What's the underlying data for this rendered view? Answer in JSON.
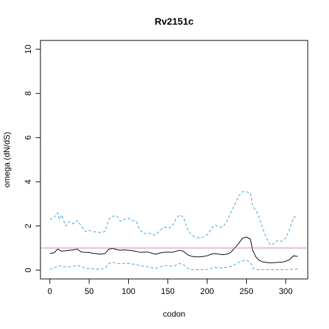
{
  "chart_data": {
    "type": "line",
    "title": "Rv2151c",
    "xlabel": "codon",
    "ylabel": "omega (dN/dS)",
    "xlim": [
      -12,
      328
    ],
    "ylim": [
      -0.4,
      10.4
    ],
    "x_ticks": [
      0,
      50,
      100,
      150,
      200,
      250,
      300
    ],
    "y_ticks": [
      0,
      2,
      4,
      6,
      8,
      10
    ],
    "grid": false,
    "reference_line": {
      "y": 1,
      "color": "#c080c0"
    },
    "series": [
      {
        "style": "solid",
        "color": "#000000",
        "points": [
          [
            0,
            0.75
          ],
          [
            5,
            0.78
          ],
          [
            10,
            0.95
          ],
          [
            15,
            0.86
          ],
          [
            20,
            0.88
          ],
          [
            25,
            0.9
          ],
          [
            30,
            0.92
          ],
          [
            35,
            0.95
          ],
          [
            40,
            0.82
          ],
          [
            45,
            0.8
          ],
          [
            50,
            0.8
          ],
          [
            55,
            0.76
          ],
          [
            60,
            0.74
          ],
          [
            65,
            0.72
          ],
          [
            70,
            0.75
          ],
          [
            75,
            0.95
          ],
          [
            80,
            0.98
          ],
          [
            85,
            0.93
          ],
          [
            90,
            0.9
          ],
          [
            95,
            0.92
          ],
          [
            100,
            0.9
          ],
          [
            105,
            0.88
          ],
          [
            110,
            0.85
          ],
          [
            115,
            0.8
          ],
          [
            120,
            0.82
          ],
          [
            125,
            0.82
          ],
          [
            130,
            0.76
          ],
          [
            135,
            0.72
          ],
          [
            140,
            0.78
          ],
          [
            145,
            0.8
          ],
          [
            150,
            0.82
          ],
          [
            155,
            0.8
          ],
          [
            160,
            0.85
          ],
          [
            165,
            0.9
          ],
          [
            170,
            0.85
          ],
          [
            175,
            0.7
          ],
          [
            180,
            0.63
          ],
          [
            185,
            0.6
          ],
          [
            190,
            0.6
          ],
          [
            195,
            0.62
          ],
          [
            200,
            0.65
          ],
          [
            205,
            0.72
          ],
          [
            210,
            0.75
          ],
          [
            215,
            0.72
          ],
          [
            220,
            0.7
          ],
          [
            225,
            0.72
          ],
          [
            230,
            0.8
          ],
          [
            235,
            1.0
          ],
          [
            240,
            1.2
          ],
          [
            245,
            1.45
          ],
          [
            250,
            1.5
          ],
          [
            255,
            1.4
          ],
          [
            258,
            0.9
          ],
          [
            262,
            0.6
          ],
          [
            266,
            0.45
          ],
          [
            270,
            0.38
          ],
          [
            275,
            0.35
          ],
          [
            280,
            0.33
          ],
          [
            285,
            0.34
          ],
          [
            290,
            0.35
          ],
          [
            295,
            0.36
          ],
          [
            300,
            0.4
          ],
          [
            305,
            0.48
          ],
          [
            310,
            0.65
          ],
          [
            315,
            0.62
          ]
        ]
      },
      {
        "style": "dashed",
        "color": "#3aa0e0",
        "points": [
          [
            0,
            2.3
          ],
          [
            5,
            2.35
          ],
          [
            10,
            2.6
          ],
          [
            12,
            2.3
          ],
          [
            15,
            2.5
          ],
          [
            20,
            2.0
          ],
          [
            25,
            2.2
          ],
          [
            30,
            2.1
          ],
          [
            35,
            2.25
          ],
          [
            40,
            2.0
          ],
          [
            45,
            1.75
          ],
          [
            50,
            1.8
          ],
          [
            55,
            1.75
          ],
          [
            60,
            1.72
          ],
          [
            65,
            1.7
          ],
          [
            70,
            1.75
          ],
          [
            75,
            2.3
          ],
          [
            80,
            2.45
          ],
          [
            85,
            2.45
          ],
          [
            90,
            2.2
          ],
          [
            95,
            2.3
          ],
          [
            100,
            2.35
          ],
          [
            105,
            2.25
          ],
          [
            110,
            2.2
          ],
          [
            115,
            1.8
          ],
          [
            120,
            1.65
          ],
          [
            125,
            1.7
          ],
          [
            130,
            1.6
          ],
          [
            135,
            1.6
          ],
          [
            140,
            1.8
          ],
          [
            145,
            1.95
          ],
          [
            150,
            1.9
          ],
          [
            155,
            1.95
          ],
          [
            160,
            2.3
          ],
          [
            165,
            2.5
          ],
          [
            170,
            2.4
          ],
          [
            175,
            1.85
          ],
          [
            180,
            1.6
          ],
          [
            185,
            1.5
          ],
          [
            190,
            1.45
          ],
          [
            195,
            1.5
          ],
          [
            200,
            1.6
          ],
          [
            205,
            1.85
          ],
          [
            210,
            2.05
          ],
          [
            215,
            1.95
          ],
          [
            220,
            1.95
          ],
          [
            225,
            2.2
          ],
          [
            230,
            2.6
          ],
          [
            235,
            2.95
          ],
          [
            240,
            3.35
          ],
          [
            245,
            3.55
          ],
          [
            250,
            3.55
          ],
          [
            255,
            3.5
          ],
          [
            258,
            2.9
          ],
          [
            262,
            2.7
          ],
          [
            266,
            2.4
          ],
          [
            270,
            1.95
          ],
          [
            275,
            1.5
          ],
          [
            280,
            1.15
          ],
          [
            285,
            1.2
          ],
          [
            290,
            1.35
          ],
          [
            295,
            1.3
          ],
          [
            300,
            1.45
          ],
          [
            305,
            1.85
          ],
          [
            310,
            2.4
          ],
          [
            315,
            2.4
          ]
        ]
      },
      {
        "style": "dashed",
        "color": "#3aa0e0",
        "points": [
          [
            0,
            0.05
          ],
          [
            5,
            0.08
          ],
          [
            10,
            0.2
          ],
          [
            15,
            0.18
          ],
          [
            20,
            0.15
          ],
          [
            25,
            0.15
          ],
          [
            30,
            0.18
          ],
          [
            35,
            0.22
          ],
          [
            40,
            0.15
          ],
          [
            45,
            0.08
          ],
          [
            50,
            0.08
          ],
          [
            55,
            0.06
          ],
          [
            60,
            0.05
          ],
          [
            65,
            0.05
          ],
          [
            70,
            0.08
          ],
          [
            75,
            0.3
          ],
          [
            80,
            0.35
          ],
          [
            85,
            0.32
          ],
          [
            90,
            0.28
          ],
          [
            95,
            0.3
          ],
          [
            100,
            0.3
          ],
          [
            105,
            0.28
          ],
          [
            110,
            0.25
          ],
          [
            115,
            0.2
          ],
          [
            120,
            0.18
          ],
          [
            125,
            0.15
          ],
          [
            130,
            0.1
          ],
          [
            135,
            0.08
          ],
          [
            140,
            0.15
          ],
          [
            145,
            0.2
          ],
          [
            150,
            0.2
          ],
          [
            155,
            0.18
          ],
          [
            160,
            0.22
          ],
          [
            165,
            0.3
          ],
          [
            170,
            0.25
          ],
          [
            175,
            0.08
          ],
          [
            180,
            0.03
          ],
          [
            185,
            0.02
          ],
          [
            190,
            0.02
          ],
          [
            195,
            0.02
          ],
          [
            200,
            0.03
          ],
          [
            205,
            0.08
          ],
          [
            210,
            0.12
          ],
          [
            215,
            0.1
          ],
          [
            220,
            0.1
          ],
          [
            225,
            0.12
          ],
          [
            230,
            0.18
          ],
          [
            235,
            0.25
          ],
          [
            240,
            0.35
          ],
          [
            245,
            0.42
          ],
          [
            250,
            0.45
          ],
          [
            255,
            0.35
          ],
          [
            258,
            0.1
          ],
          [
            262,
            0.03
          ],
          [
            266,
            0.02
          ],
          [
            270,
            0.02
          ],
          [
            275,
            0.02
          ],
          [
            280,
            0.02
          ],
          [
            285,
            0.02
          ],
          [
            290,
            0.02
          ],
          [
            295,
            0.02
          ],
          [
            300,
            0.02
          ],
          [
            305,
            0.03
          ],
          [
            310,
            0.05
          ],
          [
            315,
            0.05
          ]
        ]
      }
    ]
  }
}
